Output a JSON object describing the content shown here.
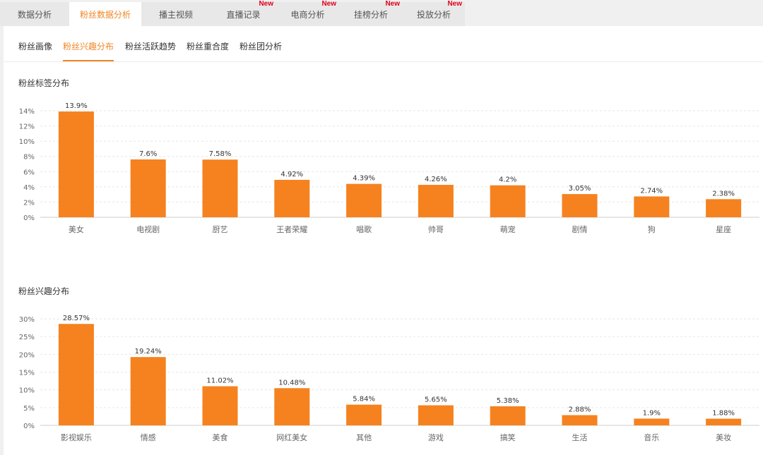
{
  "top_tabs": [
    {
      "label": "数据分析",
      "badge": ""
    },
    {
      "label": "粉丝数据分析",
      "badge": ""
    },
    {
      "label": "播主视频",
      "badge": ""
    },
    {
      "label": "直播记录",
      "badge": "New"
    },
    {
      "label": "电商分析",
      "badge": "New"
    },
    {
      "label": "挂榜分析",
      "badge": "New"
    },
    {
      "label": "投放分析",
      "badge": "New"
    }
  ],
  "sub_tabs": [
    {
      "label": "粉丝画像"
    },
    {
      "label": "粉丝兴趣分布"
    },
    {
      "label": "粉丝活跃趋势"
    },
    {
      "label": "粉丝重合度"
    },
    {
      "label": "粉丝团分析"
    }
  ],
  "active_top_tab": "粉丝数据分析",
  "active_sub_tab": "粉丝兴趣分布",
  "colors": {
    "accent": "#f08726",
    "bar": "#f5821f",
    "badge": "#e0001b"
  },
  "chart_data": [
    {
      "type": "bar",
      "title": "粉丝标签分布",
      "categories": [
        "美女",
        "电视剧",
        "厨艺",
        "王者荣耀",
        "唱歌",
        "帅哥",
        "萌宠",
        "剧情",
        "狗",
        "星座"
      ],
      "values": [
        13.9,
        7.6,
        7.58,
        4.92,
        4.39,
        4.26,
        4.2,
        3.05,
        2.74,
        2.38
      ],
      "value_labels": [
        "13.9%",
        "7.6%",
        "7.58%",
        "4.92%",
        "4.39%",
        "4.26%",
        "4.2%",
        "3.05%",
        "2.74%",
        "2.38%"
      ],
      "yticks": [
        0,
        2,
        4,
        6,
        8,
        10,
        12,
        14
      ],
      "ytick_labels": [
        "0%",
        "2%",
        "4%",
        "6%",
        "8%",
        "10%",
        "12%",
        "14%"
      ],
      "ylim": [
        0,
        14
      ],
      "grid": true
    },
    {
      "type": "bar",
      "title": "粉丝兴趣分布",
      "categories": [
        "影视娱乐",
        "情感",
        "美食",
        "网红美女",
        "其他",
        "游戏",
        "搞笑",
        "生活",
        "音乐",
        "美妆"
      ],
      "values": [
        28.57,
        19.24,
        11.02,
        10.48,
        5.84,
        5.65,
        5.38,
        2.88,
        1.9,
        1.88
      ],
      "value_labels": [
        "28.57%",
        "19.24%",
        "11.02%",
        "10.48%",
        "5.84%",
        "5.65%",
        "5.38%",
        "2.88%",
        "1.9%",
        "1.88%"
      ],
      "yticks": [
        0,
        5,
        10,
        15,
        20,
        25,
        30
      ],
      "ytick_labels": [
        "0%",
        "5%",
        "10%",
        "15%",
        "20%",
        "25%",
        "30%"
      ],
      "ylim": [
        0,
        30
      ],
      "grid": true
    }
  ]
}
